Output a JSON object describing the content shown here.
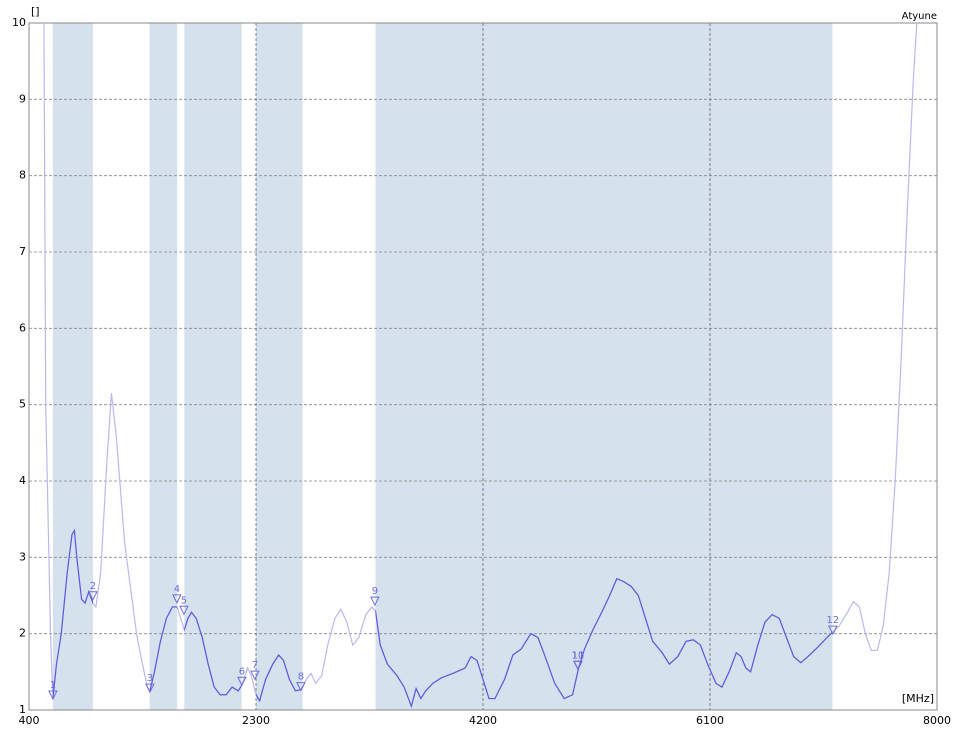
{
  "chart_data": {
    "type": "line",
    "title": "Atyune",
    "y_label": "[]",
    "x_label": "[MHz]",
    "xlim": [
      400,
      8000
    ],
    "xticks": [
      400,
      2300,
      4200,
      6100,
      8000
    ],
    "ylim": [
      1,
      10
    ],
    "yticks": [
      1,
      2,
      3,
      4,
      5,
      6,
      7,
      8,
      9,
      10
    ],
    "grid": true,
    "bands": [
      [
        600,
        935
      ],
      [
        1410,
        1640
      ],
      [
        1700,
        2180
      ],
      [
        2300,
        2690
      ],
      [
        3300,
        7125
      ]
    ],
    "band_color": "#d5e1ec",
    "x": [
      450,
      525,
      540,
      580,
      600,
      630,
      670,
      720,
      760,
      780,
      800,
      840,
      870,
      900,
      935,
      960,
      1000,
      1050,
      1090,
      1130,
      1170,
      1200,
      1250,
      1300,
      1350,
      1390,
      1412,
      1450,
      1500,
      1550,
      1600,
      1640,
      1680,
      1700,
      1730,
      1760,
      1800,
      1850,
      1900,
      1950,
      2000,
      2050,
      2100,
      2150,
      2180,
      2230,
      2260,
      2300,
      2330,
      2380,
      2440,
      2490,
      2530,
      2580,
      2630,
      2680,
      2720,
      2760,
      2800,
      2850,
      2900,
      2960,
      3010,
      3060,
      3110,
      3160,
      3220,
      3270,
      3300,
      3340,
      3400,
      3480,
      3540,
      3600,
      3640,
      3680,
      3720,
      3780,
      3850,
      3950,
      4050,
      4100,
      4150,
      4200,
      4250,
      4300,
      4380,
      4450,
      4520,
      4600,
      4660,
      4720,
      4800,
      4880,
      4950,
      5000,
      5050,
      5120,
      5200,
      5260,
      5320,
      5380,
      5440,
      5500,
      5560,
      5620,
      5700,
      5760,
      5830,
      5900,
      5960,
      6020,
      6080,
      6150,
      6200,
      6260,
      6320,
      6360,
      6400,
      6440,
      6500,
      6560,
      6620,
      6680,
      6740,
      6800,
      6860,
      6920,
      7000,
      7080,
      7125,
      7180,
      7240,
      7300,
      7350,
      7400,
      7450,
      7500,
      7550,
      7600,
      7650,
      7700,
      7750,
      7800,
      7850,
      7900
    ],
    "series": [
      {
        "name": "Atyune",
        "color": "#5a5ae0",
        "color_outside": "#b9b9f2",
        "values": [
          12,
          10,
          5,
          2,
          1.15,
          1.6,
          2.0,
          2.8,
          3.3,
          3.35,
          3.0,
          2.45,
          2.4,
          2.55,
          2.4,
          2.35,
          2.8,
          4.2,
          5.15,
          4.6,
          3.8,
          3.2,
          2.6,
          2.0,
          1.6,
          1.3,
          1.25,
          1.5,
          1.9,
          2.2,
          2.35,
          2.35,
          2.15,
          2.05,
          2.2,
          2.28,
          2.2,
          1.95,
          1.6,
          1.3,
          1.2,
          1.2,
          1.3,
          1.25,
          1.32,
          1.55,
          1.45,
          1.2,
          1.12,
          1.4,
          1.6,
          1.72,
          1.65,
          1.4,
          1.25,
          1.27,
          1.4,
          1.48,
          1.35,
          1.45,
          1.85,
          2.2,
          2.32,
          2.15,
          1.85,
          1.95,
          2.25,
          2.35,
          2.3,
          1.85,
          1.6,
          1.45,
          1.3,
          1.05,
          1.28,
          1.15,
          1.25,
          1.35,
          1.42,
          1.48,
          1.55,
          1.7,
          1.65,
          1.4,
          1.15,
          1.15,
          1.4,
          1.72,
          1.8,
          2.0,
          1.95,
          1.7,
          1.35,
          1.15,
          1.2,
          1.55,
          1.8,
          2.05,
          2.3,
          2.5,
          2.72,
          2.68,
          2.62,
          2.5,
          2.2,
          1.9,
          1.75,
          1.6,
          1.7,
          1.9,
          1.92,
          1.85,
          1.6,
          1.35,
          1.3,
          1.5,
          1.75,
          1.7,
          1.55,
          1.5,
          1.85,
          2.15,
          2.25,
          2.2,
          1.95,
          1.7,
          1.62,
          1.7,
          1.82,
          1.95,
          2.02,
          2.1,
          2.25,
          2.42,
          2.35,
          2.0,
          1.78,
          1.78,
          2.1,
          2.8,
          4.0,
          5.6,
          7.5,
          9.2,
          10.5,
          12
        ]
      }
    ],
    "markers": [
      {
        "label": "1",
        "x": 600,
        "y": 1.17
      },
      {
        "label": "2",
        "x": 935,
        "y": 2.47
      },
      {
        "label": "3",
        "x": 1412,
        "y": 1.26
      },
      {
        "label": "4",
        "x": 1638,
        "y": 2.43
      },
      {
        "label": "5",
        "x": 1697,
        "y": 2.28
      },
      {
        "label": "6",
        "x": 2182,
        "y": 1.35
      },
      {
        "label": "7",
        "x": 2291,
        "y": 1.43
      },
      {
        "label": "8",
        "x": 2676,
        "y": 1.28
      },
      {
        "label": "9",
        "x": 3295,
        "y": 2.4
      },
      {
        "label": "10",
        "x": 4994,
        "y": 1.56
      },
      {
        "label": "11",
        "x": 4996,
        "y": 1.56
      },
      {
        "label": "12",
        "x": 7128,
        "y": 2.02
      }
    ],
    "marker_color": "#6b6be0"
  }
}
